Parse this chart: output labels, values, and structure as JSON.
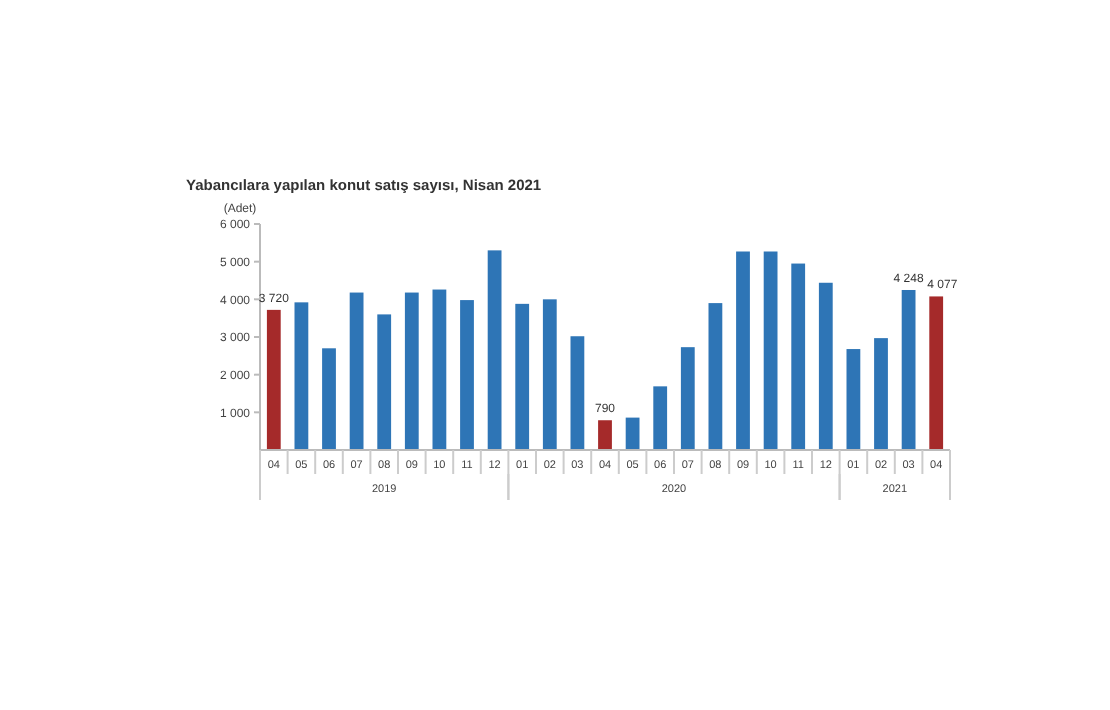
{
  "chart_data": {
    "type": "bar",
    "title": "Yabancılara yapılan konut satış sayısı, Nisan 2021",
    "ylabel": "(Adet)",
    "categories": [
      "04",
      "05",
      "06",
      "07",
      "08",
      "09",
      "10",
      "11",
      "12",
      "01",
      "02",
      "03",
      "04",
      "05",
      "06",
      "07",
      "08",
      "09",
      "10",
      "11",
      "12",
      "01",
      "02",
      "03",
      "04"
    ],
    "values": [
      3720,
      3920,
      2700,
      4180,
      3600,
      4180,
      4260,
      3980,
      5300,
      3880,
      4000,
      3020,
      790,
      860,
      1690,
      2730,
      3900,
      5270,
      5270,
      4950,
      4440,
      2680,
      2970,
      4248,
      4077
    ],
    "colors": [
      "#a52a2a",
      "#2e75b6",
      "#2e75b6",
      "#2e75b6",
      "#2e75b6",
      "#2e75b6",
      "#2e75b6",
      "#2e75b6",
      "#2e75b6",
      "#2e75b6",
      "#2e75b6",
      "#2e75b6",
      "#a52a2a",
      "#2e75b6",
      "#2e75b6",
      "#2e75b6",
      "#2e75b6",
      "#2e75b6",
      "#2e75b6",
      "#2e75b6",
      "#2e75b6",
      "#2e75b6",
      "#2e75b6",
      "#2e75b6",
      "#a52a2a"
    ],
    "value_labels": [
      "3 720",
      null,
      null,
      null,
      null,
      null,
      null,
      null,
      null,
      null,
      null,
      null,
      "790",
      null,
      null,
      null,
      null,
      null,
      null,
      null,
      null,
      null,
      null,
      "4 248",
      "4 077"
    ],
    "ylim": [
      0,
      6000
    ],
    "yticks": [
      {
        "value": 1000,
        "label": "1 000"
      },
      {
        "value": 2000,
        "label": "2 000"
      },
      {
        "value": 3000,
        "label": "3 000"
      },
      {
        "value": 4000,
        "label": "4 000"
      },
      {
        "value": 5000,
        "label": "5 000"
      },
      {
        "value": 6000,
        "label": "6 000"
      }
    ],
    "grid": false,
    "annotations": [
      "2019",
      "2020",
      "2021"
    ]
  }
}
